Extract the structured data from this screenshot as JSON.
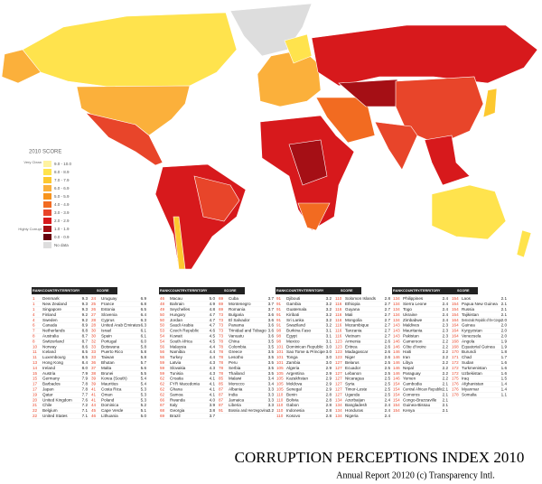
{
  "legend": {
    "title": "2010 SCORE",
    "top_note": "Very Clean",
    "bottom_note": "Highly Corrupt",
    "items": [
      {
        "label": "9.0 - 10.0",
        "color": "#fff3a0"
      },
      {
        "label": "8.0 - 8.9",
        "color": "#ffe34d"
      },
      {
        "label": "7.0 - 7.9",
        "color": "#fdc82f"
      },
      {
        "label": "6.0 - 6.9",
        "color": "#fbb03b"
      },
      {
        "label": "5.0 - 5.9",
        "color": "#f7941d"
      },
      {
        "label": "4.0 - 4.9",
        "color": "#f26b21"
      },
      {
        "label": "3.0 - 3.9",
        "color": "#e8452a"
      },
      {
        "label": "2.0 - 2.9",
        "color": "#d7191c"
      },
      {
        "label": "1.0 - 1.9",
        "color": "#a50f15"
      },
      {
        "label": "0.0 - 0.9",
        "color": "#67000d"
      },
      {
        "label": "No data",
        "color": "#dddddd"
      }
    ]
  },
  "table": {
    "header": [
      "RANK",
      "COUNTRY/TERRITORY",
      "SCORE"
    ],
    "blocks": [
      [
        [
          "1",
          "Denmark",
          "9.3"
        ],
        [
          "1",
          "New Zealand",
          "9.3"
        ],
        [
          "1",
          "Singapore",
          "9.3"
        ],
        [
          "4",
          "Finland",
          "9.2"
        ],
        [
          "4",
          "Sweden",
          "9.2"
        ],
        [
          "6",
          "Canada",
          "8.9"
        ],
        [
          "7",
          "Netherlands",
          "8.8"
        ],
        [
          "8",
          "Australia",
          "8.7"
        ],
        [
          "8",
          "Switzerland",
          "8.7"
        ],
        [
          "10",
          "Norway",
          "8.6"
        ],
        [
          "11",
          "Iceland",
          "8.5"
        ],
        [
          "11",
          "Luxembourg",
          "8.5"
        ],
        [
          "13",
          "Hong Kong",
          "8.4"
        ],
        [
          "14",
          "Ireland",
          "8.0"
        ],
        [
          "15",
          "Austria",
          "7.9"
        ],
        [
          "15",
          "Germany",
          "7.9"
        ],
        [
          "17",
          "Barbados",
          "7.8"
        ],
        [
          "17",
          "Japan",
          "7.8"
        ],
        [
          "19",
          "Qatar",
          "7.7"
        ],
        [
          "20",
          "United Kingdom",
          "7.6"
        ],
        [
          "21",
          "Chile",
          "7.2"
        ],
        [
          "22",
          "Belgium",
          "7.1"
        ],
        [
          "22",
          "United States",
          "7.1"
        ]
      ],
      [
        [
          "24",
          "Uruguay",
          "6.9"
        ],
        [
          "25",
          "France",
          "6.8"
        ],
        [
          "26",
          "Estonia",
          "6.5"
        ],
        [
          "27",
          "Slovenia",
          "6.4"
        ],
        [
          "28",
          "Cyprus",
          "6.3"
        ],
        [
          "28",
          "United Arab Emirates",
          "6.3"
        ],
        [
          "30",
          "Israel",
          "6.1"
        ],
        [
          "30",
          "Spain",
          "6.1"
        ],
        [
          "32",
          "Portugal",
          "6.0"
        ],
        [
          "33",
          "Botswana",
          "5.8"
        ],
        [
          "33",
          "Puerto Rico",
          "5.8"
        ],
        [
          "33",
          "Taiwan",
          "5.8"
        ],
        [
          "36",
          "Bhutan",
          "5.7"
        ],
        [
          "37",
          "Malta",
          "5.6"
        ],
        [
          "38",
          "Brunei",
          "5.5"
        ],
        [
          "39",
          "Korea (South)",
          "5.4"
        ],
        [
          "39",
          "Mauritius",
          "5.4"
        ],
        [
          "41",
          "Costa Rica",
          "5.3"
        ],
        [
          "41",
          "Oman",
          "5.3"
        ],
        [
          "41",
          "Poland",
          "5.3"
        ],
        [
          "44",
          "Dominica",
          "5.2"
        ],
        [
          "45",
          "Cape Verde",
          "5.1"
        ],
        [
          "46",
          "Lithuania",
          "5.0"
        ]
      ],
      [
        [
          "46",
          "Macau",
          "5.0"
        ],
        [
          "48",
          "Bahrain",
          "4.9"
        ],
        [
          "49",
          "Seychelles",
          "4.8"
        ],
        [
          "50",
          "Hungary",
          "4.7"
        ],
        [
          "50",
          "Jordan",
          "4.7"
        ],
        [
          "50",
          "Saudi Arabia",
          "4.7"
        ],
        [
          "53",
          "Czech Republic",
          "4.6"
        ],
        [
          "54",
          "Kuwait",
          "4.5"
        ],
        [
          "54",
          "South Africa",
          "4.5"
        ],
        [
          "56",
          "Malaysia",
          "4.4"
        ],
        [
          "56",
          "Namibia",
          "4.4"
        ],
        [
          "56",
          "Turkey",
          "4.4"
        ],
        [
          "59",
          "Latvia",
          "4.3"
        ],
        [
          "59",
          "Slovakia",
          "4.3"
        ],
        [
          "59",
          "Tunisia",
          "4.3"
        ],
        [
          "62",
          "Croatia",
          "4.1"
        ],
        [
          "62",
          "FYR Macedonia",
          "4.1"
        ],
        [
          "62",
          "Ghana",
          "4.1"
        ],
        [
          "62",
          "Samoa",
          "4.1"
        ],
        [
          "66",
          "Rwanda",
          "4.0"
        ],
        [
          "67",
          "Italy",
          "3.9"
        ],
        [
          "68",
          "Georgia",
          "3.8"
        ],
        [
          "69",
          "Brazil",
          "3.7"
        ]
      ],
      [
        [
          "69",
          "Cuba",
          "3.7"
        ],
        [
          "69",
          "Montenegro",
          "3.7"
        ],
        [
          "69",
          "Romania",
          "3.7"
        ],
        [
          "73",
          "Bulgaria",
          "3.6"
        ],
        [
          "73",
          "El Salvador",
          "3.6"
        ],
        [
          "73",
          "Panama",
          "3.6"
        ],
        [
          "73",
          "Trinidad and Tobago",
          "3.6"
        ],
        [
          "73",
          "Vanuatu",
          "3.6"
        ],
        [
          "78",
          "China",
          "3.5"
        ],
        [
          "78",
          "Colombia",
          "3.5"
        ],
        [
          "78",
          "Greece",
          "3.5"
        ],
        [
          "78",
          "Lesotho",
          "3.5"
        ],
        [
          "78",
          "Peru",
          "3.5"
        ],
        [
          "78",
          "Serbia",
          "3.5"
        ],
        [
          "78",
          "Thailand",
          "3.5"
        ],
        [
          "85",
          "Malawi",
          "3.4"
        ],
        [
          "85",
          "Morocco",
          "3.4"
        ],
        [
          "87",
          "Albania",
          "3.3"
        ],
        [
          "87",
          "India",
          "3.3"
        ],
        [
          "87",
          "Jamaica",
          "3.3"
        ],
        [
          "87",
          "Liberia",
          "3.3"
        ],
        [
          "91",
          "Bosnia and Herzegovina",
          "3.2"
        ]
      ],
      [
        [
          "91",
          "Djibouti",
          "3.2"
        ],
        [
          "91",
          "Gambia",
          "3.2"
        ],
        [
          "91",
          "Guatemala",
          "3.2"
        ],
        [
          "91",
          "Kiribati",
          "3.2"
        ],
        [
          "91",
          "Sri Lanka",
          "3.2"
        ],
        [
          "91",
          "Swaziland",
          "3.2"
        ],
        [
          "98",
          "Burkina Faso",
          "3.1"
        ],
        [
          "98",
          "Egypt",
          "3.1"
        ],
        [
          "98",
          "Mexico",
          "3.1"
        ],
        [
          "101",
          "Dominican Republic",
          "3.0"
        ],
        [
          "101",
          "Sao Tome & Principe",
          "3.0"
        ],
        [
          "101",
          "Tonga",
          "3.0"
        ],
        [
          "101",
          "Zambia",
          "3.0"
        ],
        [
          "105",
          "Algeria",
          "2.9"
        ],
        [
          "105",
          "Argentina",
          "2.9"
        ],
        [
          "105",
          "Kazakhstan",
          "2.9"
        ],
        [
          "105",
          "Moldova",
          "2.9"
        ],
        [
          "105",
          "Senegal",
          "2.9"
        ],
        [
          "110",
          "Benin",
          "2.8"
        ],
        [
          "110",
          "Bolivia",
          "2.8"
        ],
        [
          "110",
          "Gabon",
          "2.8"
        ],
        [
          "110",
          "Indonesia",
          "2.8"
        ],
        [
          "110",
          "Kosovo",
          "2.8"
        ]
      ],
      [
        [
          "110",
          "Solomon Islands",
          "2.8"
        ],
        [
          "116",
          "Ethiopia",
          "2.7"
        ],
        [
          "116",
          "Guyana",
          "2.7"
        ],
        [
          "116",
          "Mali",
          "2.7"
        ],
        [
          "116",
          "Mongolia",
          "2.7"
        ],
        [
          "116",
          "Mozambique",
          "2.7"
        ],
        [
          "116",
          "Tanzania",
          "2.7"
        ],
        [
          "116",
          "Vietnam",
          "2.7"
        ],
        [
          "123",
          "Armenia",
          "2.6"
        ],
        [
          "123",
          "Eritrea",
          "2.6"
        ],
        [
          "123",
          "Madagascar",
          "2.6"
        ],
        [
          "123",
          "Niger",
          "2.6"
        ],
        [
          "127",
          "Belarus",
          "2.5"
        ],
        [
          "127",
          "Ecuador",
          "2.5"
        ],
        [
          "127",
          "Lebanon",
          "2.5"
        ],
        [
          "127",
          "Nicaragua",
          "2.5"
        ],
        [
          "127",
          "Syria",
          "2.5"
        ],
        [
          "127",
          "Timor-Leste",
          "2.5"
        ],
        [
          "127",
          "Uganda",
          "2.5"
        ],
        [
          "134",
          "Azerbaijan",
          "2.4"
        ],
        [
          "134",
          "Bangladesh",
          "2.4"
        ],
        [
          "134",
          "Honduras",
          "2.4"
        ],
        [
          "134",
          "Nigeria",
          "2.4"
        ]
      ],
      [
        [
          "134",
          "Philippines",
          "2.4"
        ],
        [
          "134",
          "Sierra Leone",
          "2.4"
        ],
        [
          "134",
          "Togo",
          "2.4"
        ],
        [
          "134",
          "Ukraine",
          "2.4"
        ],
        [
          "134",
          "Zimbabwe",
          "2.4"
        ],
        [
          "143",
          "Maldives",
          "2.3"
        ],
        [
          "143",
          "Mauritania",
          "2.3"
        ],
        [
          "143",
          "Pakistan",
          "2.3"
        ],
        [
          "146",
          "Cameroon",
          "2.2"
        ],
        [
          "146",
          "Côte d'Ivoire",
          "2.2"
        ],
        [
          "146",
          "Haiti",
          "2.2"
        ],
        [
          "146",
          "Iran",
          "2.2"
        ],
        [
          "146",
          "Libya",
          "2.2"
        ],
        [
          "146",
          "Nepal",
          "2.2"
        ],
        [
          "146",
          "Paraguay",
          "2.2"
        ],
        [
          "146",
          "Yemen",
          "2.2"
        ],
        [
          "154",
          "Cambodia",
          "2.1"
        ],
        [
          "154",
          "Central African Republic",
          "2.1"
        ],
        [
          "154",
          "Comoros",
          "2.1"
        ],
        [
          "154",
          "Congo-Brazzaville",
          "2.1"
        ],
        [
          "154",
          "Guinea-Bissau",
          "2.1"
        ],
        [
          "154",
          "Kenya",
          "2.1"
        ]
      ],
      [
        [
          "154",
          "Laos",
          "2.1"
        ],
        [
          "154",
          "Papua New Guinea",
          "2.1"
        ],
        [
          "154",
          "Russia",
          "2.1"
        ],
        [
          "154",
          "Tajikistan",
          "2.1"
        ],
        [
          "164",
          "Democratic Republic of the Congo",
          "2.0"
        ],
        [
          "164",
          "Guinea",
          "2.0"
        ],
        [
          "164",
          "Kyrgyzstan",
          "2.0"
        ],
        [
          "164",
          "Venezuela",
          "2.0"
        ],
        [
          "168",
          "Angola",
          "1.9"
        ],
        [
          "168",
          "Equatorial Guinea",
          "1.9"
        ],
        [
          "170",
          "Burundi",
          "1.8"
        ],
        [
          "171",
          "Chad",
          "1.7"
        ],
        [
          "172",
          "Sudan",
          "1.6"
        ],
        [
          "172",
          "Turkmenistan",
          "1.6"
        ],
        [
          "172",
          "Uzbekistan",
          "1.6"
        ],
        [
          "175",
          "Iraq",
          "1.5"
        ],
        [
          "176",
          "Afghanistan",
          "1.4"
        ],
        [
          "176",
          "Myanmar",
          "1.4"
        ],
        [
          "178",
          "Somalia",
          "1.1"
        ]
      ]
    ]
  },
  "footer": {
    "title": "CORRUPTION PERCEPTIONS INDEX 2010",
    "subtitle": "Annual Report 20120 (c) Transparency Intl."
  }
}
